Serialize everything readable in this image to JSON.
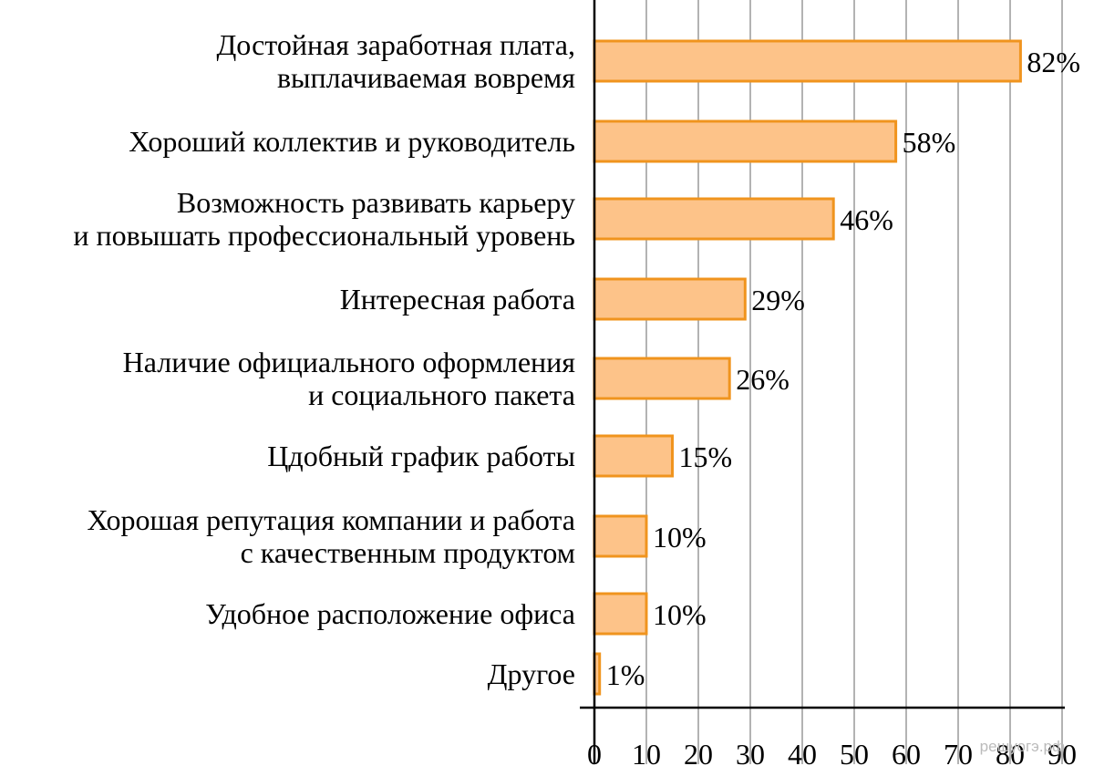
{
  "chart_data": {
    "type": "bar",
    "orientation": "horizontal",
    "categories": [
      [
        "Достойная заработная плата,",
        "выплачиваемая вовремя"
      ],
      [
        "Хороший коллектив и руководитель"
      ],
      [
        "Возможность развивать карьеру",
        "и повышать профессиональный уровень"
      ],
      [
        "Интересная работа"
      ],
      [
        "Наличие официального оформления",
        "и социального пакета"
      ],
      [
        "Цдобный график работы"
      ],
      [
        "Хорошая репутация компании и работа",
        "с качественным продуктом"
      ],
      [
        "Удобное расположение офиса"
      ],
      [
        "Другое"
      ]
    ],
    "values": [
      82,
      58,
      46,
      29,
      26,
      15,
      10,
      10,
      1
    ],
    "value_labels": [
      "82%",
      "58%",
      "46%",
      "29%",
      "26%",
      "15%",
      "10%",
      "10%",
      "1%"
    ],
    "xlim": [
      0,
      90
    ],
    "xticks": [
      "0",
      "10",
      "20",
      "30",
      "40",
      "50",
      "60",
      "70",
      "80",
      "90"
    ],
    "grid": "vertical",
    "title": "",
    "xlabel": "",
    "ylabel": "",
    "colors": {
      "bar_fill": "#fdc389",
      "bar_stroke": "#f0941e",
      "grid": "#b3b3b3",
      "axis": "#000000"
    },
    "watermark": "решуогэ.рф"
  }
}
